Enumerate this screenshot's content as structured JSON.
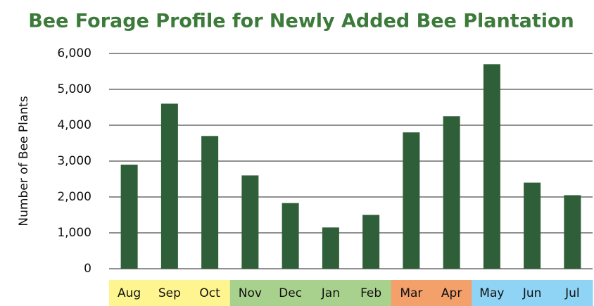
{
  "chart_data": {
    "type": "bar",
    "title": "Bee Forage Profile for Newly Added Bee Plantation",
    "ylabel": "Number of Bee Plants",
    "categories": [
      "Aug",
      "Sep",
      "Oct",
      "Nov",
      "Dec",
      "Jan",
      "Feb",
      "Mar",
      "Apr",
      "May",
      "Jun",
      "Jul"
    ],
    "values": [
      2900,
      4600,
      3700,
      2600,
      1830,
      1150,
      1500,
      3800,
      4250,
      5700,
      2400,
      2050
    ],
    "color": "#2f5f38",
    "category_colors": [
      "#fef590",
      "#fef590",
      "#fef590",
      "#a9d18e",
      "#a9d18e",
      "#a9d18e",
      "#a9d18e",
      "#f4a06a",
      "#f4a06a",
      "#8fd3f5",
      "#8fd3f5",
      "#8fd3f5"
    ],
    "ylim": [
      0,
      6000
    ],
    "yticks": [
      0,
      {
        "value": 1000,
        "label": "1,000"
      },
      {
        "value": 2000,
        "label": "2,000"
      },
      {
        "value": 3000,
        "label": "3,000"
      },
      {
        "value": 4000,
        "label": "4,000"
      },
      {
        "value": 5000,
        "label": "5,000"
      },
      {
        "value": 6000,
        "label": "6,000"
      }
    ],
    "grid": true
  }
}
